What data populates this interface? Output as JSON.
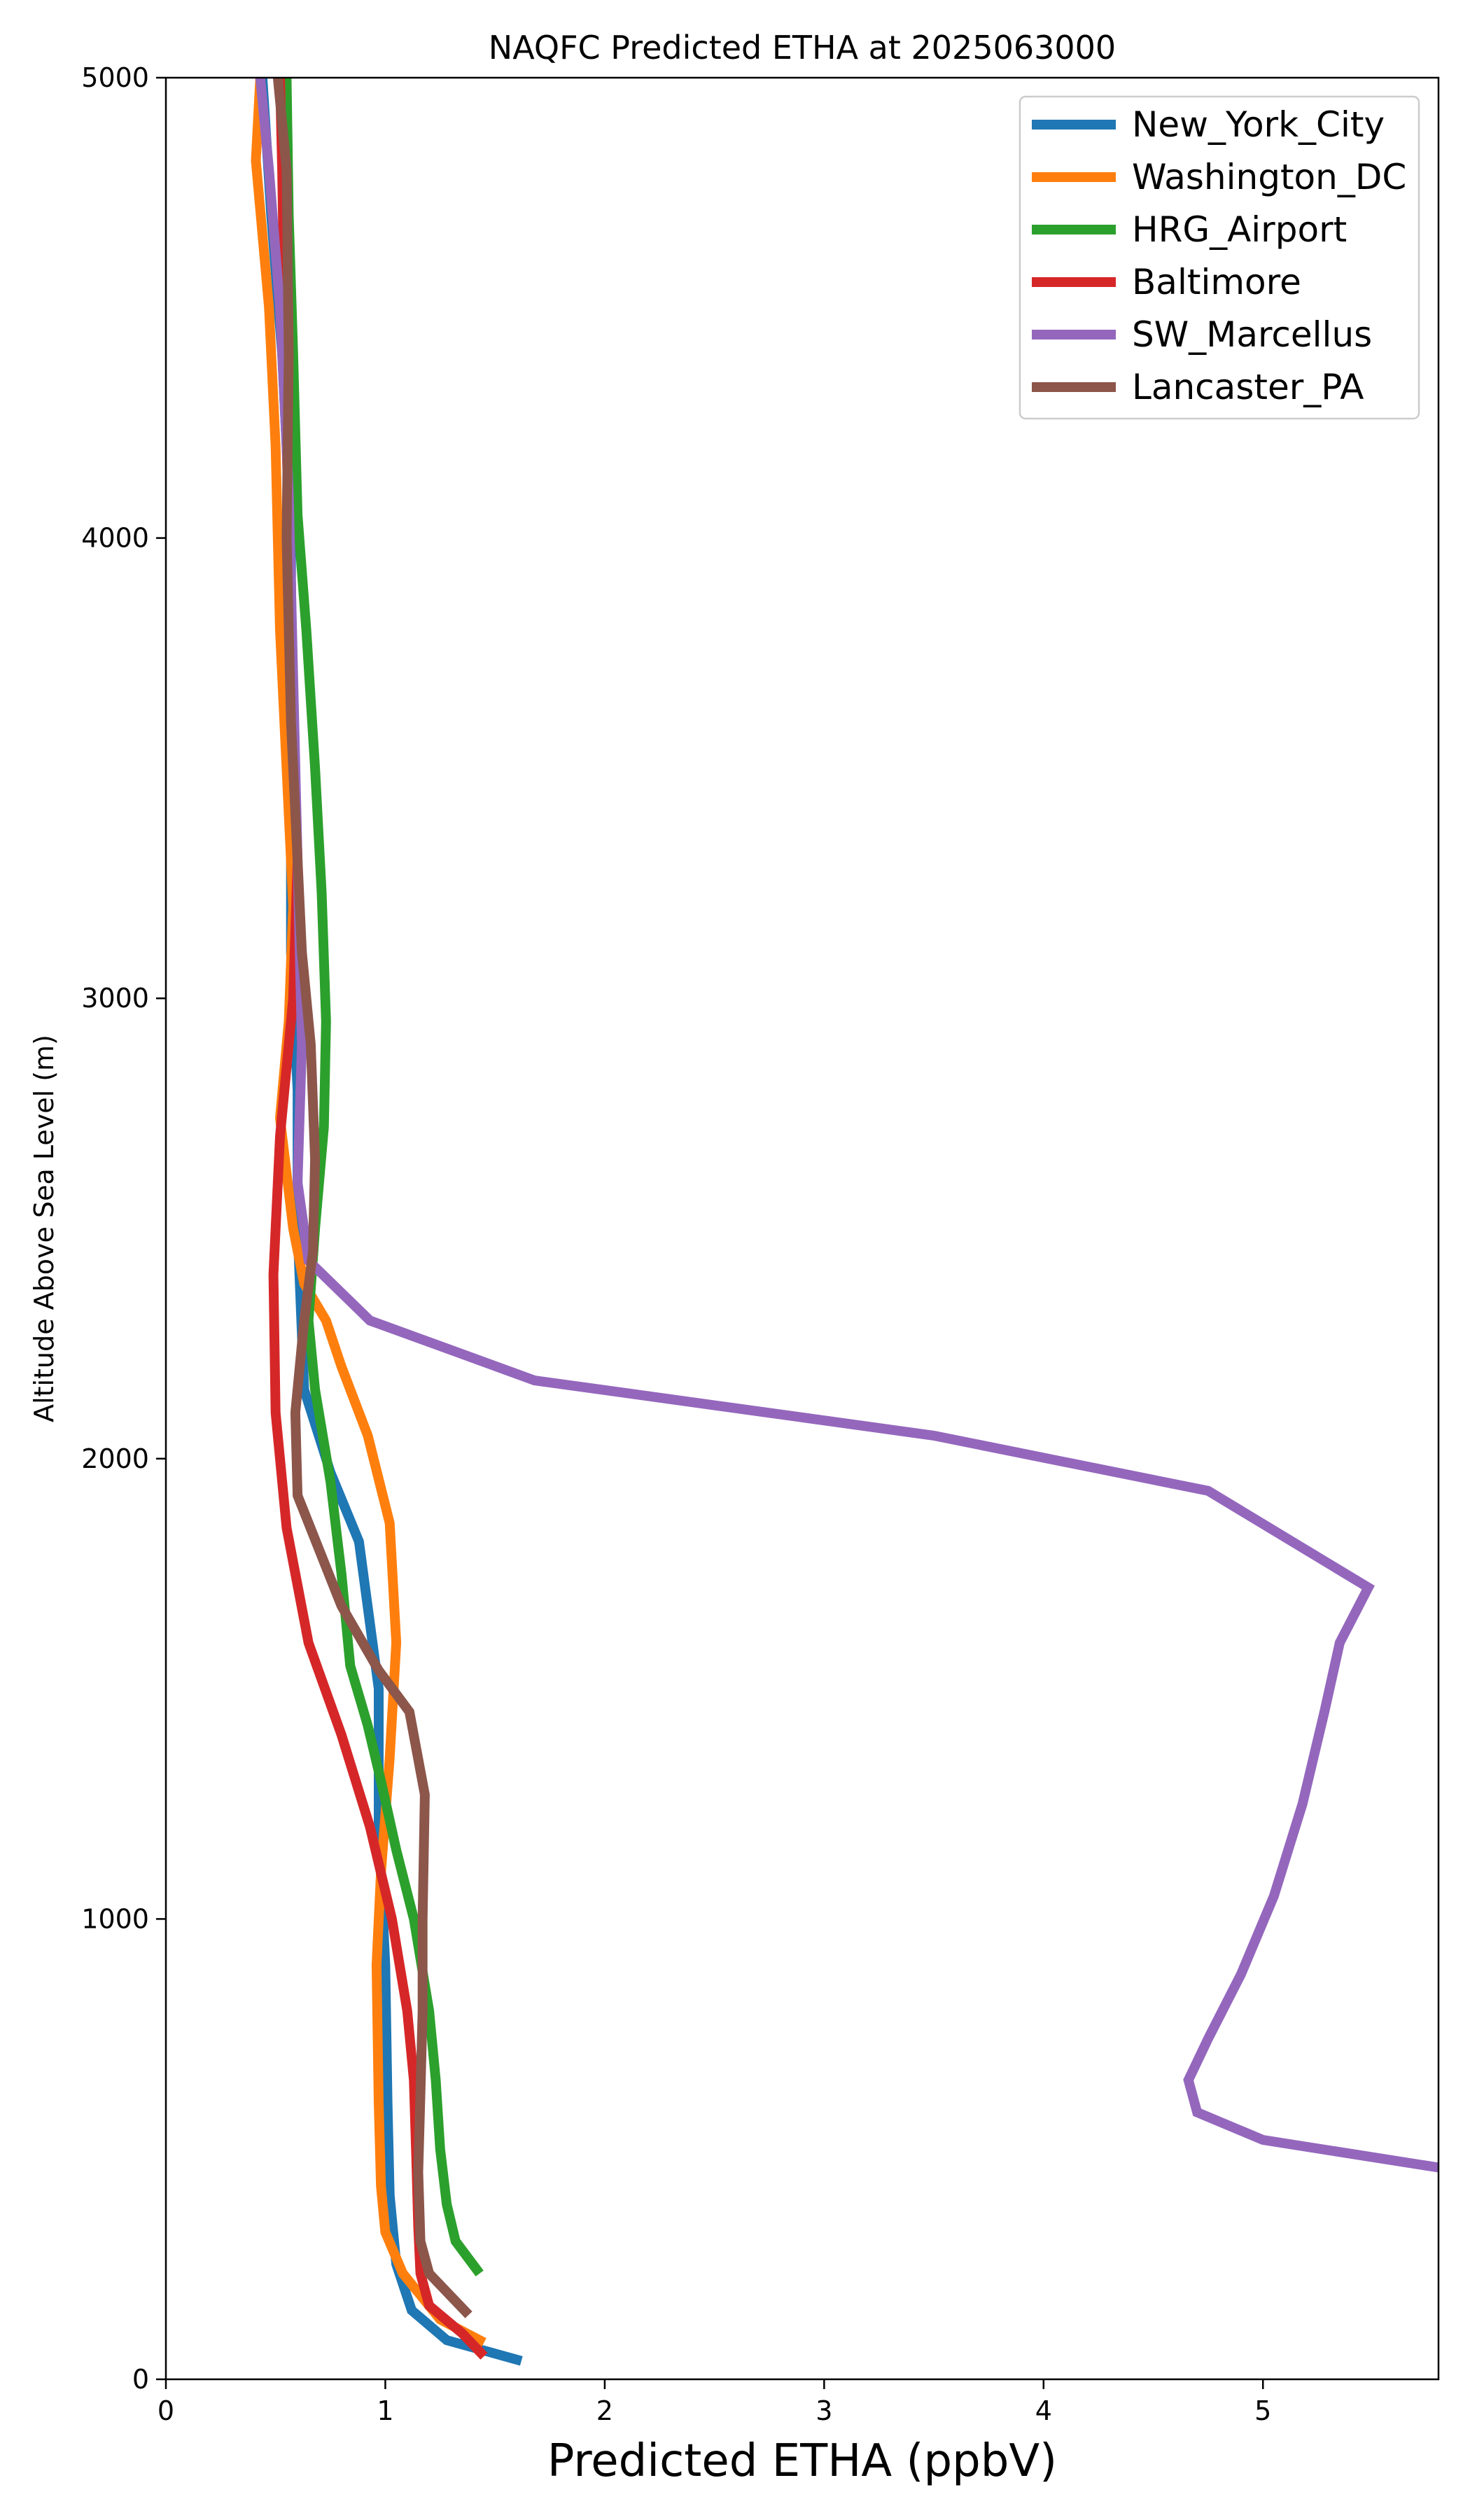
{
  "chart_data": {
    "type": "line",
    "title": "NAQFC Predicted ETHA at 2025063000",
    "xlabel": "Predicted ETHA (ppbV)",
    "ylabel": "Altitude Above Sea Level (m)",
    "xlim": [
      0,
      5.8
    ],
    "ylim": [
      0,
      5000
    ],
    "xticks": [
      0,
      1,
      2,
      3,
      4,
      5
    ],
    "yticks": [
      0,
      1000,
      2000,
      3000,
      4000,
      5000
    ],
    "grid": false,
    "legend_position": "top-right",
    "series": [
      {
        "name": "New_York_City",
        "color": "#1f77b4",
        "points": [
          [
            1.62,
            40
          ],
          [
            1.28,
            85
          ],
          [
            1.12,
            150
          ],
          [
            1.05,
            250
          ],
          [
            1.02,
            400
          ],
          [
            1.01,
            600
          ],
          [
            1.0,
            900
          ],
          [
            0.97,
            1200
          ],
          [
            0.97,
            1500
          ],
          [
            0.88,
            1820
          ],
          [
            0.75,
            1970
          ],
          [
            0.63,
            2150
          ],
          [
            0.6,
            2500
          ],
          [
            0.6,
            2800
          ],
          [
            0.57,
            3100
          ],
          [
            0.57,
            3400
          ],
          [
            0.57,
            3700
          ],
          [
            0.57,
            4000
          ],
          [
            0.53,
            4400
          ],
          [
            0.48,
            4700
          ],
          [
            0.44,
            5000
          ]
        ]
      },
      {
        "name": "Washington_DC",
        "color": "#ff7f0e",
        "points": [
          [
            1.45,
            80
          ],
          [
            1.25,
            130
          ],
          [
            1.08,
            230
          ],
          [
            1.0,
            320
          ],
          [
            0.98,
            420
          ],
          [
            0.97,
            600
          ],
          [
            0.96,
            900
          ],
          [
            0.98,
            1100
          ],
          [
            1.02,
            1350
          ],
          [
            1.05,
            1600
          ],
          [
            1.02,
            1860
          ],
          [
            0.92,
            2050
          ],
          [
            0.8,
            2200
          ],
          [
            0.73,
            2300
          ],
          [
            0.63,
            2380
          ],
          [
            0.58,
            2500
          ],
          [
            0.52,
            2740
          ],
          [
            0.56,
            2950
          ],
          [
            0.58,
            3200
          ],
          [
            0.55,
            3500
          ],
          [
            0.52,
            3800
          ],
          [
            0.5,
            4200
          ],
          [
            0.47,
            4500
          ],
          [
            0.41,
            4820
          ],
          [
            0.43,
            5000
          ]
        ]
      },
      {
        "name": "HRG_Airport",
        "color": "#2ca02c",
        "points": [
          [
            1.43,
            230
          ],
          [
            1.32,
            300
          ],
          [
            1.28,
            380
          ],
          [
            1.25,
            500
          ],
          [
            1.23,
            650
          ],
          [
            1.2,
            800
          ],
          [
            1.13,
            1000
          ],
          [
            1.05,
            1150
          ],
          [
            0.98,
            1300
          ],
          [
            0.92,
            1420
          ],
          [
            0.84,
            1550
          ],
          [
            0.8,
            1750
          ],
          [
            0.75,
            1950
          ],
          [
            0.68,
            2150
          ],
          [
            0.65,
            2300
          ],
          [
            0.68,
            2500
          ],
          [
            0.72,
            2720
          ],
          [
            0.73,
            2950
          ],
          [
            0.71,
            3230
          ],
          [
            0.68,
            3500
          ],
          [
            0.64,
            3800
          ],
          [
            0.6,
            4050
          ],
          [
            0.58,
            4400
          ],
          [
            0.56,
            4700
          ],
          [
            0.55,
            5000
          ]
        ]
      },
      {
        "name": "Baltimore",
        "color": "#d62728",
        "points": [
          [
            1.45,
            50
          ],
          [
            1.35,
            100
          ],
          [
            1.2,
            160
          ],
          [
            1.16,
            230
          ],
          [
            1.15,
            330
          ],
          [
            1.14,
            500
          ],
          [
            1.13,
            650
          ],
          [
            1.1,
            800
          ],
          [
            1.03,
            1000
          ],
          [
            0.93,
            1200
          ],
          [
            0.8,
            1400
          ],
          [
            0.65,
            1600
          ],
          [
            0.55,
            1850
          ],
          [
            0.5,
            2100
          ],
          [
            0.49,
            2400
          ],
          [
            0.52,
            2700
          ],
          [
            0.58,
            3000
          ],
          [
            0.6,
            3300
          ],
          [
            0.58,
            3600
          ],
          [
            0.57,
            3900
          ],
          [
            0.55,
            4200
          ],
          [
            0.54,
            4500
          ],
          [
            0.53,
            4800
          ],
          [
            0.52,
            5000
          ]
        ]
      },
      {
        "name": "SW_Marcellus",
        "color": "#9467bd",
        "points": [
          [
            5.8,
            460
          ],
          [
            5.0,
            520
          ],
          [
            4.7,
            580
          ],
          [
            4.66,
            650
          ],
          [
            4.75,
            740
          ],
          [
            4.9,
            880
          ],
          [
            5.05,
            1050
          ],
          [
            5.18,
            1250
          ],
          [
            5.28,
            1450
          ],
          [
            5.35,
            1600
          ],
          [
            5.48,
            1720
          ],
          [
            4.75,
            1930
          ],
          [
            3.5,
            2050
          ],
          [
            1.68,
            2170
          ],
          [
            0.93,
            2300
          ],
          [
            0.65,
            2430
          ],
          [
            0.6,
            2600
          ],
          [
            0.62,
            2900
          ],
          [
            0.6,
            3300
          ],
          [
            0.58,
            3700
          ],
          [
            0.56,
            4100
          ],
          [
            0.52,
            4500
          ],
          [
            0.47,
            4800
          ],
          [
            0.43,
            5000
          ]
        ]
      },
      {
        "name": "Lancaster_PA",
        "color": "#8c564b",
        "points": [
          [
            1.38,
            140
          ],
          [
            1.2,
            230
          ],
          [
            1.16,
            300
          ],
          [
            1.15,
            450
          ],
          [
            1.16,
            620
          ],
          [
            1.17,
            800
          ],
          [
            1.17,
            1000
          ],
          [
            1.18,
            1270
          ],
          [
            1.11,
            1450
          ],
          [
            0.97,
            1540
          ],
          [
            0.8,
            1680
          ],
          [
            0.6,
            1920
          ],
          [
            0.59,
            2100
          ],
          [
            0.63,
            2300
          ],
          [
            0.67,
            2450
          ],
          [
            0.68,
            2650
          ],
          [
            0.66,
            2900
          ],
          [
            0.62,
            3100
          ],
          [
            0.6,
            3300
          ],
          [
            0.57,
            3600
          ],
          [
            0.55,
            4000
          ],
          [
            0.56,
            4400
          ],
          [
            0.55,
            4800
          ],
          [
            0.51,
            5000
          ]
        ]
      }
    ]
  }
}
